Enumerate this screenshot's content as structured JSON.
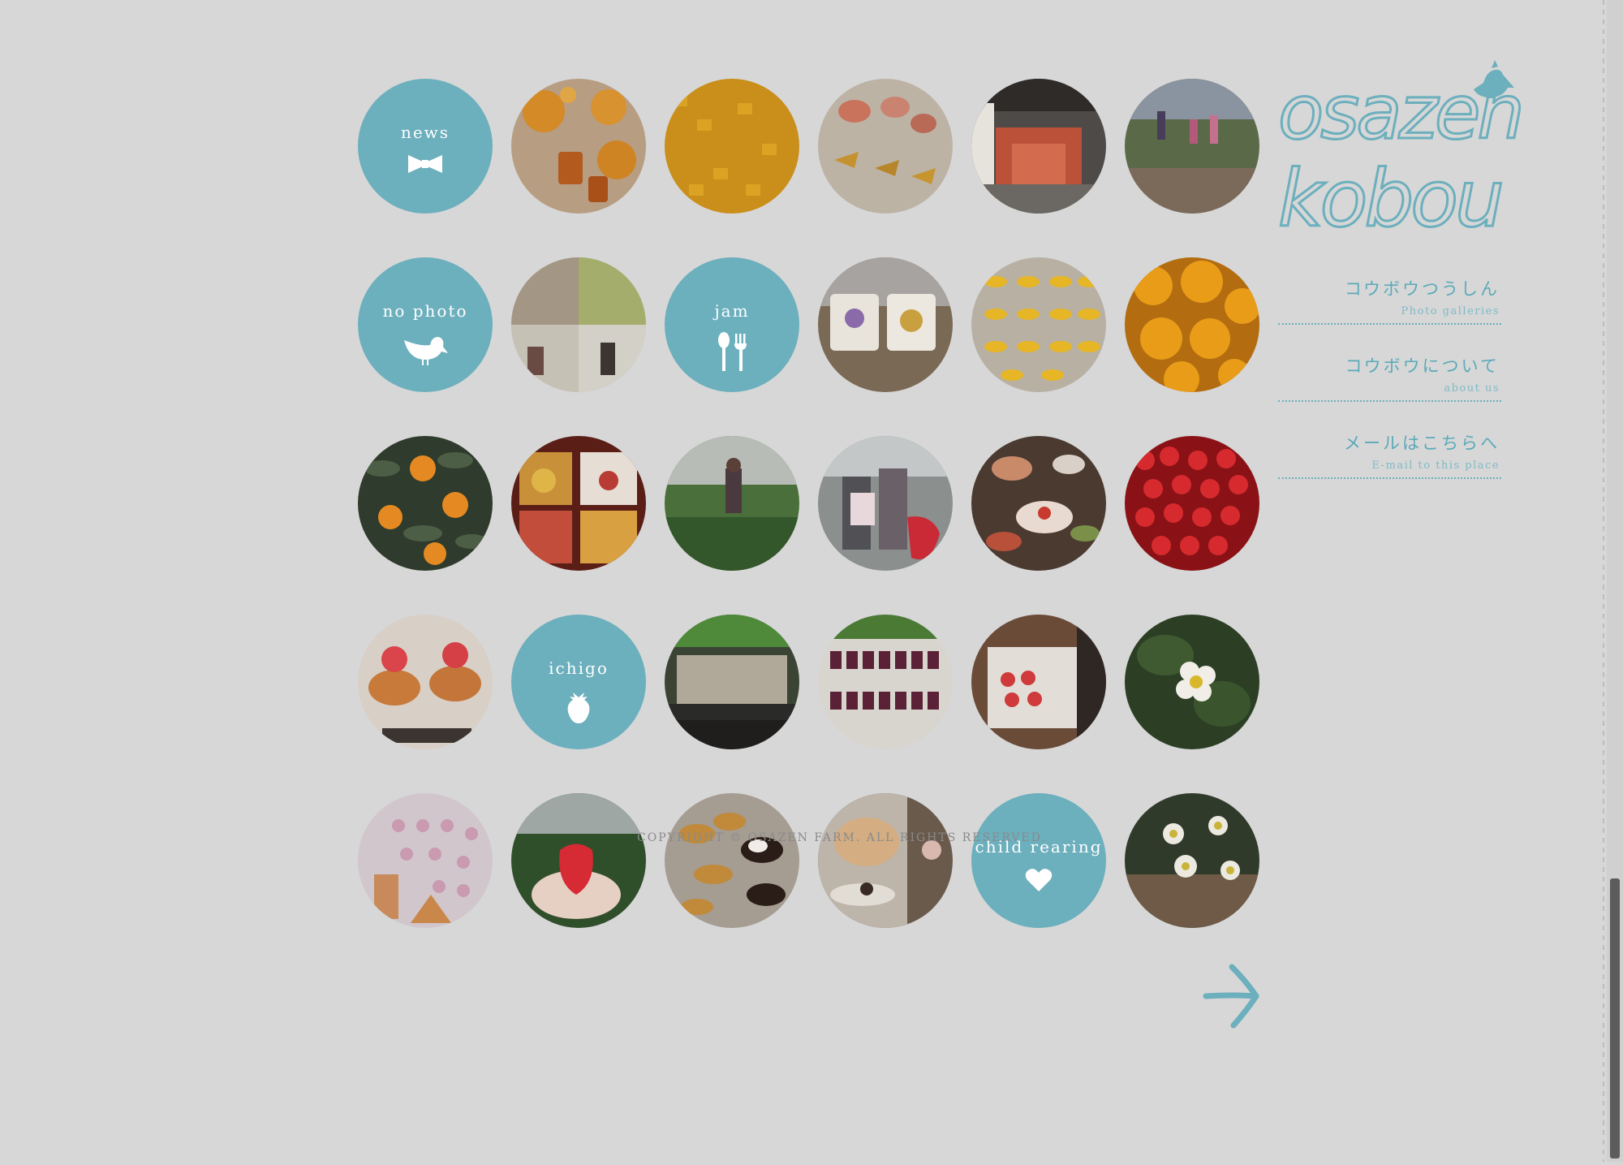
{
  "brand": {
    "logo_line1": "osazen",
    "logo_line2": "kobou",
    "accent": "#6cafbd"
  },
  "nav": [
    {
      "jp": "コウボウつうしん",
      "en": "Photo galleries"
    },
    {
      "jp": "コウボウについて",
      "en": "about us"
    },
    {
      "jp": "メールはこちらへ",
      "en": "E-mail to this place"
    }
  ],
  "categories": {
    "news": "news",
    "no_photo": "no photo",
    "jam": "jam",
    "ichigo": "ichigo",
    "child_rearing": "child rearing"
  },
  "footer": {
    "copyright": "COPYRIGHT © OSAZEN FARM. ALL RIGHTS RESERVED."
  },
  "icons": {
    "news": "bow-icon",
    "no_photo": "bird-icon",
    "jam": "spoon-fork-icon",
    "ichigo": "strawberry-icon",
    "child_rearing": "heart-icon",
    "next": "arrow-right-icon"
  }
}
